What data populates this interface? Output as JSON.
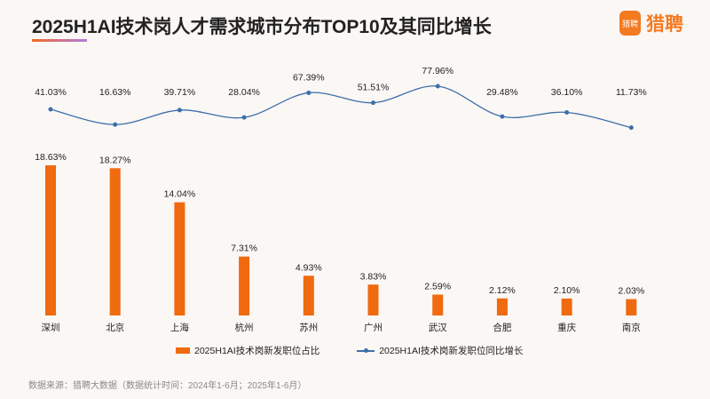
{
  "title": "2025H1AI技术岗人才需求城市分布TOP10及其同比增长",
  "logo": {
    "icon_text": "猎聘",
    "text": "猎聘"
  },
  "source": "数据来源：猎聘大数据（数据统计时间：2024年1-6月；2025年1-6月）",
  "chart_data": {
    "type": "bar+line",
    "categories": [
      "深圳",
      "北京",
      "上海",
      "杭州",
      "苏州",
      "广州",
      "武汉",
      "合肥",
      "重庆",
      "南京"
    ],
    "series": [
      {
        "name": "2025H1AI技术岗新发职位占比",
        "type": "bar",
        "color": "#f06a0f",
        "values": [
          18.63,
          18.27,
          14.04,
          7.31,
          4.93,
          3.83,
          2.59,
          2.12,
          2.1,
          2.03
        ],
        "labels": [
          "18.63%",
          "18.27%",
          "14.04%",
          "7.31%",
          "4.93%",
          "3.83%",
          "2.59%",
          "2.12%",
          "2.10%",
          "2.03%"
        ]
      },
      {
        "name": "2025H1AI技术岗新发职位同比增长",
        "type": "line",
        "smooth": true,
        "color": "#3c6fa8",
        "values": [
          41.03,
          16.63,
          39.71,
          28.04,
          67.39,
          51.51,
          77.96,
          29.48,
          36.1,
          11.73
        ],
        "labels": [
          "41.03%",
          "16.63%",
          "39.71%",
          "28.04%",
          "67.39%",
          "51.51%",
          "77.96%",
          "29.48%",
          "36.10%",
          "11.73%"
        ]
      }
    ],
    "legend": "bottom",
    "grid": false
  }
}
